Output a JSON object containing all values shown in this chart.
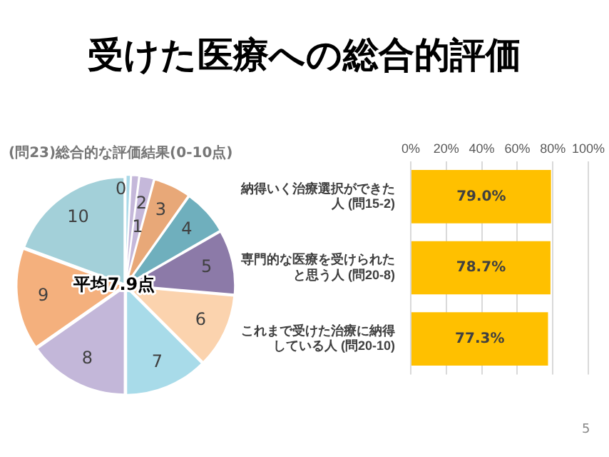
{
  "chart_data": [
    {
      "type": "pie",
      "title": "受けた医療への総合的評価",
      "subtitle": "(問23)総合的な評価結果(0-10点)",
      "categories": [
        "0",
        "1",
        "2",
        "3",
        "4",
        "5",
        "6",
        "7",
        "8",
        "9",
        "10"
      ],
      "values": [
        0.8,
        1.2,
        2.2,
        5.6,
        6.9,
        9.7,
        11.1,
        12.5,
        15.3,
        15.3,
        19.4
      ],
      "colors": [
        "#a9d9e8",
        "#c5b8da",
        "#c5b8da",
        "#e8a878",
        "#6fafbd",
        "#8c7aa8",
        "#fbd3ae",
        "#a8dbe9",
        "#c3b7d9",
        "#f4b07d",
        "#a3d0d9"
      ],
      "annotations": [
        "平均7.9点",
        "5"
      ],
      "legend": false
    },
    {
      "type": "bar",
      "orientation": "horizontal",
      "categories": [
        "納得いく治療選択ができた人 (問15-2)",
        "専門的な医療を受けられたと思う人 (問20-8)",
        "これまで受けた治療に納得している人 (問20-10)"
      ],
      "values": [
        79.0,
        78.7,
        77.3
      ],
      "color": "#ffc000",
      "value_labels": [
        "79.0%",
        "78.7%",
        "77.3%"
      ],
      "xlim": [
        0,
        100
      ],
      "xticks": [
        {
          "value": 0,
          "label": "0%"
        },
        {
          "value": 20,
          "label": "20%"
        },
        {
          "value": 40,
          "label": "40%"
        },
        {
          "value": 60,
          "label": "60%"
        },
        {
          "value": 80,
          "label": "80%"
        },
        {
          "value": 100,
          "label": "100%"
        }
      ],
      "grid": "x",
      "legend": false
    }
  ]
}
